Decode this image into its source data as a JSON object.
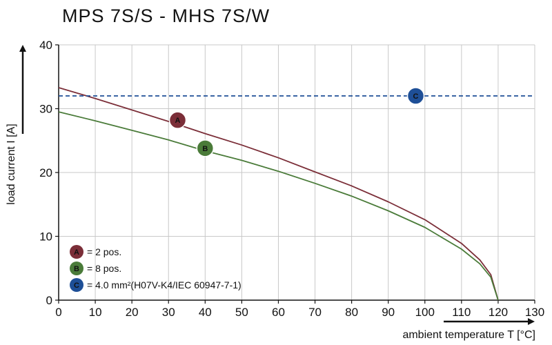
{
  "header": {
    "title": "MPS 7S/S - MHS 7S/W"
  },
  "chart_data": {
    "type": "line",
    "title": "MPS 7S/S - MHS 7S/W",
    "xlabel": "ambient temperature T [°C]",
    "ylabel": "load current I [A]",
    "xlim": [
      0,
      130
    ],
    "ylim": [
      0,
      40
    ],
    "x_ticks": [
      0,
      10,
      20,
      30,
      40,
      50,
      60,
      70,
      80,
      90,
      100,
      110,
      120,
      130
    ],
    "y_ticks": [
      0,
      10,
      20,
      30,
      40
    ],
    "grid": true,
    "legend_position": "bottom-left",
    "series": [
      {
        "name": "A",
        "label": "= 2 pos.",
        "color": "#7b2e38",
        "x": [
          0,
          10,
          20,
          30,
          40,
          50,
          60,
          70,
          80,
          90,
          100,
          110,
          115,
          118,
          120
        ],
        "y": [
          33.3,
          31.6,
          29.8,
          28.0,
          26.1,
          24.3,
          22.3,
          20.1,
          17.9,
          15.4,
          12.6,
          8.9,
          6.3,
          4.0,
          0
        ]
      },
      {
        "name": "B",
        "label": "= 8 pos.",
        "color": "#4a7b39",
        "x": [
          0,
          10,
          20,
          30,
          40,
          50,
          60,
          70,
          80,
          90,
          100,
          110,
          115,
          118,
          120
        ],
        "y": [
          29.5,
          28.1,
          26.6,
          25.1,
          23.4,
          21.9,
          20.2,
          18.3,
          16.3,
          14.0,
          11.4,
          8.0,
          5.7,
          3.6,
          0
        ]
      },
      {
        "name": "C",
        "label": "= 4.0 mm²(H07V-K4/IEC 60947-7-1)",
        "color": "#1e4f97",
        "style": "dashed",
        "x": [
          0,
          130
        ],
        "y": [
          32,
          32
        ]
      }
    ],
    "markers": [
      {
        "label": "A",
        "x": 32.5,
        "y": 28.2,
        "color": "#7b2e38"
      },
      {
        "label": "B",
        "x": 40,
        "y": 23.8,
        "color": "#4a7b39"
      },
      {
        "label": "C",
        "x": 97.5,
        "y": 32,
        "color": "#1e4f97"
      }
    ]
  }
}
